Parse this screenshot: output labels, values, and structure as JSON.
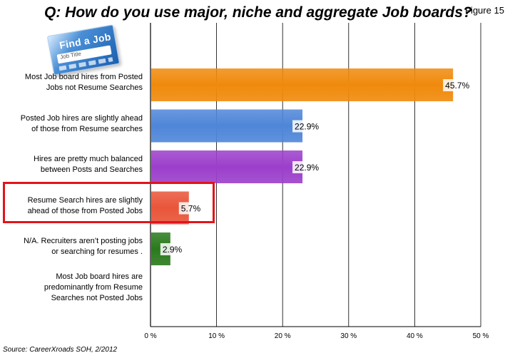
{
  "header": {
    "title": "Q: How do you use major, niche and aggregate Job boards?",
    "figure_label": "Figure 15"
  },
  "logo": {
    "text": "Find a Job",
    "subtext": "Job Title"
  },
  "footer": {
    "source": "Source: CareerXroads SOH, 2/2012"
  },
  "chart_data": {
    "type": "bar",
    "orientation": "horizontal",
    "categories": [
      [
        "Most Job board hires  from Posted",
        "Jobs not Resume Searches"
      ],
      [
        "Posted Job hires are slightly ahead",
        "of those from Resume searches"
      ],
      [
        "Hires are pretty much balanced",
        "between Posts and Searches"
      ],
      [
        "Resume Search hires are slightly",
        "ahead of those from Posted Jobs"
      ],
      [
        "N/A. Recruiters aren’t posting jobs",
        "or searching for resumes ."
      ],
      [
        "Most Job board hires are",
        "predominantly from Resume",
        "Searches not Posted Jobs"
      ]
    ],
    "values": [
      45.7,
      22.9,
      22.9,
      5.7,
      2.9,
      0
    ],
    "data_labels": [
      "45.7%",
      "22.9%",
      "22.9%",
      "5.7%",
      "2.9%",
      ""
    ],
    "colors": [
      "#f08a0c",
      "#4f86d8",
      "#9c3fcb",
      "#e9553a",
      "#2a7a1c",
      "#999999"
    ],
    "xlim": [
      0,
      50
    ],
    "ticks": [
      0,
      10,
      20,
      30,
      40,
      50
    ],
    "tick_labels": [
      "0 %",
      "10 %",
      "20 %",
      "30 %",
      "40 %",
      "50 %"
    ],
    "grid": true,
    "highlighted_index": 3,
    "highlight_color": "#e3131b"
  }
}
